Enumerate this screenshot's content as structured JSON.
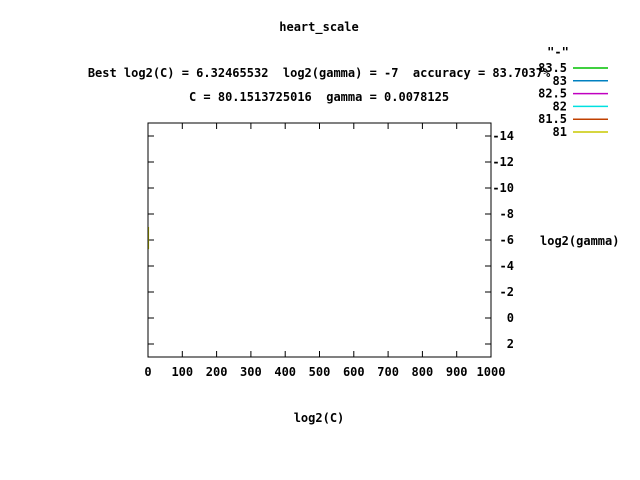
{
  "chart_data": {
    "type": "line",
    "title": "heart_scale",
    "subtitle_line1": "Best log2(C) = 6.32465532  log2(gamma) = -7  accuracy = 83.7037%",
    "subtitle_line2": "C = 80.1513725016  gamma = 0.0078125",
    "xlabel": "log2(C)",
    "ylabel": "log2(gamma)",
    "xlim": [
      0,
      1000
    ],
    "ylim": [
      3,
      -15
    ],
    "x_ticks": [
      0,
      100,
      200,
      300,
      400,
      500,
      600,
      700,
      800,
      900,
      1000
    ],
    "y_ticks": [
      -14,
      -12,
      -10,
      -8,
      -6,
      -4,
      -2,
      0,
      2
    ],
    "y_tick_labels": [
      "-14",
      "-12",
      "-10",
      "-8",
      "-6",
      "-4",
      "-2",
      "0",
      "2"
    ],
    "x_tick_labels": [
      "0",
      "100",
      "200",
      "300",
      "400",
      "500",
      "600",
      "700",
      "800",
      "900",
      "1000"
    ],
    "legend_title": "\"-\"",
    "legend_position": "top-right",
    "series": [
      {
        "name": "83.5",
        "color": "#00c000",
        "values": []
      },
      {
        "name": "83",
        "color": "#0080c0",
        "values": []
      },
      {
        "name": "82.5",
        "color": "#c000c0",
        "values": []
      },
      {
        "name": "82",
        "color": "#00e0e0",
        "values": []
      },
      {
        "name": "81.5",
        "color": "#c04000",
        "values": []
      },
      {
        "name": "81",
        "color": "#c8c800",
        "points": [
          {
            "x": 1,
            "y": -7
          },
          {
            "x": 1,
            "y": -5.3
          }
        ]
      }
    ]
  }
}
